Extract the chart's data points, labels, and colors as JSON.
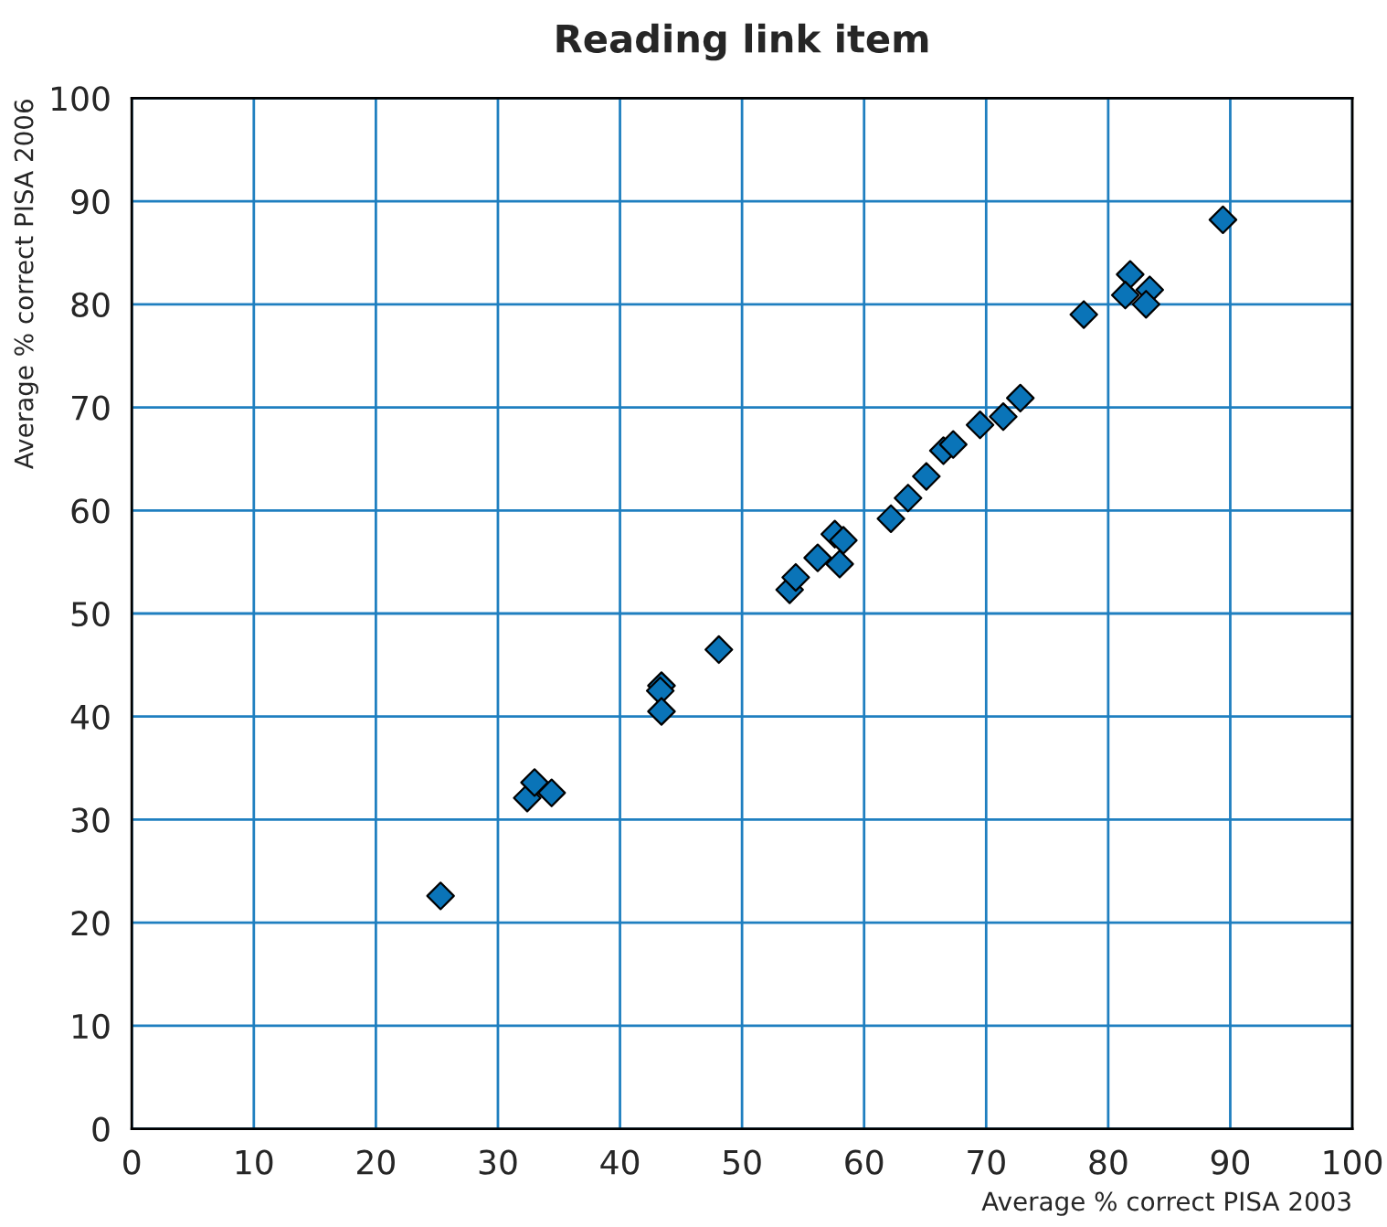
{
  "chart_data": {
    "type": "scatter",
    "title": "Reading link item",
    "xlabel": "Average % correct PISA 2003",
    "ylabel": "Average % correct PISA 2006",
    "x": [
      25.3,
      32.4,
      33.0,
      34.4,
      43.4,
      43.3,
      43.4,
      48.1,
      53.9,
      54.4,
      56.2,
      57.6,
      58.3,
      58.0,
      62.2,
      63.6,
      65.1,
      66.5,
      67.3,
      69.5,
      71.4,
      72.8,
      78.0,
      81.8,
      81.4,
      83.4,
      83.1,
      89.4
    ],
    "series": [
      {
        "color": "#0a74b8",
        "values": [
          22.6,
          32.1,
          33.6,
          32.6,
          43.0,
          42.5,
          40.5,
          46.5,
          52.3,
          53.5,
          55.4,
          57.7,
          57.1,
          54.8,
          59.2,
          61.2,
          63.3,
          65.8,
          66.4,
          68.3,
          69.1,
          70.9,
          79.0,
          82.9,
          80.9,
          81.4,
          80.0,
          88.2
        ]
      }
    ],
    "marker": "diamond",
    "grid": true,
    "xlim": [
      0,
      100
    ],
    "ylim": [
      0,
      100
    ],
    "xticks": [
      0,
      10,
      20,
      30,
      40,
      50,
      60,
      70,
      80,
      90,
      100
    ],
    "yticks": [
      0,
      10,
      20,
      30,
      40,
      50,
      60,
      70,
      80,
      90,
      100
    ]
  }
}
